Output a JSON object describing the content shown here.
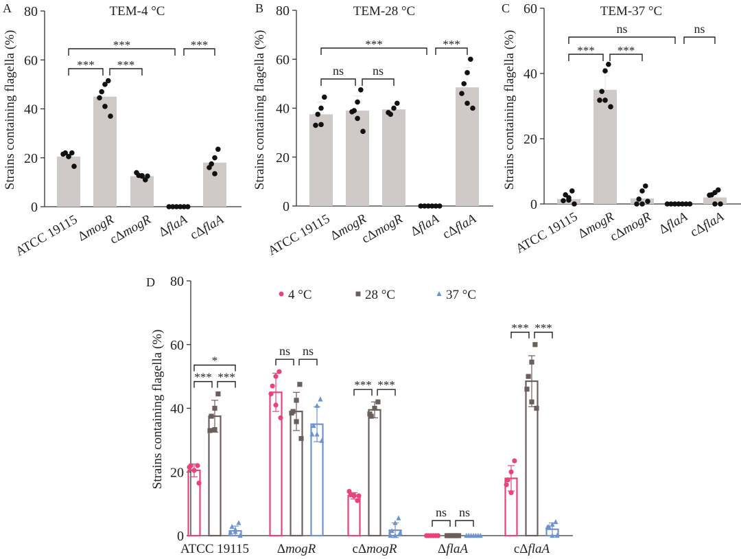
{
  "chart_data": [
    {
      "panel": "A",
      "type": "bar",
      "title": "TEM-4 °C",
      "ylabel": "Strains containing flagella (%)",
      "xlabel": "",
      "ylim": [
        0,
        80
      ],
      "yticks": [
        0,
        20,
        40,
        60,
        80
      ],
      "categories": [
        "ATCC 19115",
        "ΔmogR",
        "cΔmogR",
        "ΔflaA",
        "cΔflaA"
      ],
      "category_prefix": [
        "",
        "",
        "c",
        "",
        "c"
      ],
      "category_delta": [
        "",
        "Δ",
        "Δ",
        "Δ",
        "Δ"
      ],
      "category_italic": [
        "ATCC 19115",
        "mogR",
        "mogR",
        "flaA",
        "flaA"
      ],
      "category_italic_flag": [
        false,
        true,
        true,
        true,
        true
      ],
      "means": [
        20.5,
        45,
        12.5,
        0,
        18
      ],
      "sd": [
        2,
        6,
        1,
        0,
        4
      ],
      "points": [
        [
          22,
          20.5,
          22,
          21.5,
          20.5,
          16.5
        ],
        [
          51.5,
          50,
          47,
          44.5,
          41,
          37
        ],
        [
          11,
          12.5,
          12.8,
          13.9,
          12.7,
          12.5
        ],
        [
          0,
          0,
          0,
          0,
          0,
          0
        ],
        [
          23.5,
          20,
          17.5,
          16,
          13.5
        ]
      ],
      "comparisons": [
        {
          "from": 0,
          "to": 1,
          "label": "***",
          "level": 0
        },
        {
          "from": 1,
          "to": 2,
          "label": "***",
          "level": 0
        },
        {
          "from": 0,
          "to": 3,
          "label": "***",
          "level": 1
        },
        {
          "from": 3,
          "to": 4,
          "label": "***",
          "level": 1
        }
      ]
    },
    {
      "panel": "B",
      "type": "bar",
      "title": "TEM-28 °C",
      "ylabel": "Strains containing flagella (%)",
      "xlabel": "",
      "ylim": [
        0,
        80
      ],
      "yticks": [
        0,
        20,
        40,
        60,
        80
      ],
      "categories": [
        "ATCC 19115",
        "ΔmogR",
        "cΔmogR",
        "ΔflaA",
        "cΔflaA"
      ],
      "category_prefix": [
        "",
        "",
        "c",
        "",
        "c"
      ],
      "category_delta": [
        "",
        "Δ",
        "Δ",
        "Δ",
        "Δ"
      ],
      "category_italic": [
        "ATCC 19115",
        "mogR",
        "mogR",
        "flaA",
        "flaA"
      ],
      "category_italic_flag": [
        false,
        true,
        true,
        true,
        true
      ],
      "means": [
        37.5,
        39,
        39.5,
        0,
        48.5
      ],
      "sd": [
        5,
        6,
        2.5,
        0,
        8
      ],
      "points": [
        [
          44.5,
          40,
          37.5,
          33,
          33.3
        ],
        [
          47.5,
          42.5,
          39,
          38.5,
          35.8,
          30.5
        ],
        [
          42,
          40,
          37.5,
          38.2
        ],
        [
          0,
          0,
          0,
          0,
          0,
          0
        ],
        [
          60,
          54.5,
          50,
          46,
          42,
          40
        ]
      ],
      "comparisons": [
        {
          "from": 0,
          "to": 1,
          "label": "ns",
          "level": 0
        },
        {
          "from": 1,
          "to": 2,
          "label": "ns",
          "level": 0
        },
        {
          "from": 0,
          "to": 3,
          "label": "***",
          "level": 1
        },
        {
          "from": 3,
          "to": 4,
          "label": "***",
          "level": 1
        }
      ]
    },
    {
      "panel": "C",
      "type": "bar",
      "title": "TEM-37 °C",
      "ylabel": "Strains containing flagella (%)",
      "xlabel": "",
      "ylim": [
        0,
        60
      ],
      "yticks": [
        0,
        20,
        40,
        60
      ],
      "categories": [
        "ATCC 19115",
        "ΔmogR",
        "cΔmogR",
        "ΔflaA",
        "cΔflaA"
      ],
      "category_prefix": [
        "",
        "",
        "c",
        "",
        "c"
      ],
      "category_delta": [
        "",
        "Δ",
        "Δ",
        "Δ",
        "Δ"
      ],
      "category_italic": [
        "ATCC 19115",
        "mogR",
        "mogR",
        "flaA",
        "flaA"
      ],
      "category_italic_flag": [
        false,
        true,
        true,
        true,
        true
      ],
      "means": [
        1.5,
        35,
        1.7,
        0,
        2
      ],
      "sd": [
        1.5,
        5.5,
        2.3,
        0,
        2
      ],
      "points": [
        [
          4,
          1.9,
          2.8,
          1,
          1.2,
          0
        ],
        [
          42.8,
          40.8,
          34.5,
          31.8,
          31.8,
          29.8
        ],
        [
          5.5,
          4,
          1.5,
          0,
          0,
          0.8
        ],
        [
          0,
          0,
          0,
          0,
          0,
          0,
          0
        ],
        [
          4.3,
          3.5,
          2.8,
          2.7,
          0,
          0
        ]
      ],
      "comparisons": [
        {
          "from": 0,
          "to": 1,
          "label": "***",
          "level": 0
        },
        {
          "from": 1,
          "to": 2,
          "label": "***",
          "level": 0
        },
        {
          "from": 0,
          "to": 3,
          "label": "ns",
          "level": 1
        },
        {
          "from": 3,
          "to": 4,
          "label": "ns",
          "level": 1
        }
      ]
    },
    {
      "panel": "D",
      "type": "bar",
      "title": "",
      "ylabel": "Strains containing flagella (%)",
      "xlabel": "",
      "ylim": [
        0,
        80
      ],
      "yticks": [
        0,
        20,
        40,
        60,
        80
      ],
      "legend_position": "top",
      "categories": [
        "ATCC 19115",
        "ΔmogR",
        "cΔmogR",
        "ΔflaA",
        "cΔflaA"
      ],
      "category_prefix": [
        "",
        "",
        "c",
        "",
        "c"
      ],
      "category_delta": [
        "",
        "Δ",
        "Δ",
        "Δ",
        "Δ"
      ],
      "category_italic": [
        "ATCC 19115",
        "mogR",
        "mogR",
        "flaA",
        "flaA"
      ],
      "category_italic_flag": [
        false,
        true,
        true,
        true,
        true
      ],
      "series": [
        {
          "name": "4 °C",
          "marker": "circle",
          "color": "#e8447a",
          "means": [
            20.5,
            45,
            12.5,
            0,
            18
          ],
          "sd": [
            2,
            6,
            1,
            0,
            4
          ],
          "points": [
            [
              22,
              20.5,
              22,
              21.5,
              20.5,
              16.5
            ],
            [
              51.5,
              50,
              47,
              44.5,
              41,
              37
            ],
            [
              11,
              12.5,
              12.8,
              13.9,
              12.7,
              12.5
            ],
            [
              0,
              0,
              0,
              0,
              0,
              0
            ],
            [
              23.5,
              20,
              17.5,
              16,
              13.5
            ]
          ]
        },
        {
          "name": "28 °C",
          "marker": "square",
          "color": "#6b5f5c",
          "means": [
            37.5,
            39,
            39.5,
            0,
            48.5
          ],
          "sd": [
            5,
            6,
            2.5,
            0,
            8
          ],
          "points": [
            [
              44.5,
              40,
              37.5,
              33,
              33.3
            ],
            [
              47.5,
              42.5,
              39,
              38.5,
              35.8,
              30.5
            ],
            [
              42,
              40,
              37.5,
              38.2
            ],
            [
              0,
              0,
              0,
              0,
              0,
              0
            ],
            [
              60,
              54.5,
              50,
              46,
              42,
              40
            ]
          ]
        },
        {
          "name": "37 °C",
          "marker": "triangle",
          "color": "#6f93cf",
          "means": [
            1.5,
            35,
            1.7,
            0,
            2
          ],
          "sd": [
            1.5,
            5.5,
            2.3,
            0,
            2
          ],
          "points": [
            [
              4,
              1.9,
              2.8,
              1,
              1.2,
              0
            ],
            [
              42.8,
              40.8,
              34.5,
              31.8,
              31.8,
              29.8
            ],
            [
              5.5,
              4,
              1.5,
              0,
              0,
              0.8
            ],
            [
              0,
              0,
              0,
              0,
              0,
              0,
              0
            ],
            [
              4.3,
              3.5,
              2.8,
              2.7,
              0,
              0
            ]
          ]
        }
      ],
      "comparisons": [
        {
          "group": 0,
          "from": 0,
          "to": 1,
          "label": "***",
          "level": 0
        },
        {
          "group": 0,
          "from": 1,
          "to": 2,
          "label": "***",
          "level": 0
        },
        {
          "group": 0,
          "from": 0,
          "to": 2,
          "label": "*",
          "level": 1
        },
        {
          "group": 1,
          "from": 0,
          "to": 1,
          "label": "ns",
          "level": 0
        },
        {
          "group": 1,
          "from": 1,
          "to": 2,
          "label": "ns",
          "level": 0
        },
        {
          "group": 2,
          "from": 0,
          "to": 1,
          "label": "***",
          "level": 0
        },
        {
          "group": 2,
          "from": 1,
          "to": 2,
          "label": "***",
          "level": 0
        },
        {
          "group": 3,
          "from": 0,
          "to": 1,
          "label": "ns",
          "level": 0
        },
        {
          "group": 3,
          "from": 1,
          "to": 2,
          "label": "ns",
          "level": 0
        },
        {
          "group": 4,
          "from": 0,
          "to": 1,
          "label": "***",
          "level": 0
        },
        {
          "group": 4,
          "from": 1,
          "to": 2,
          "label": "***",
          "level": 0
        }
      ]
    }
  ],
  "colors": {
    "bar_fill": "#cfc9c7",
    "point": "#111111",
    "axis": "#333333",
    "text": "#222222"
  }
}
